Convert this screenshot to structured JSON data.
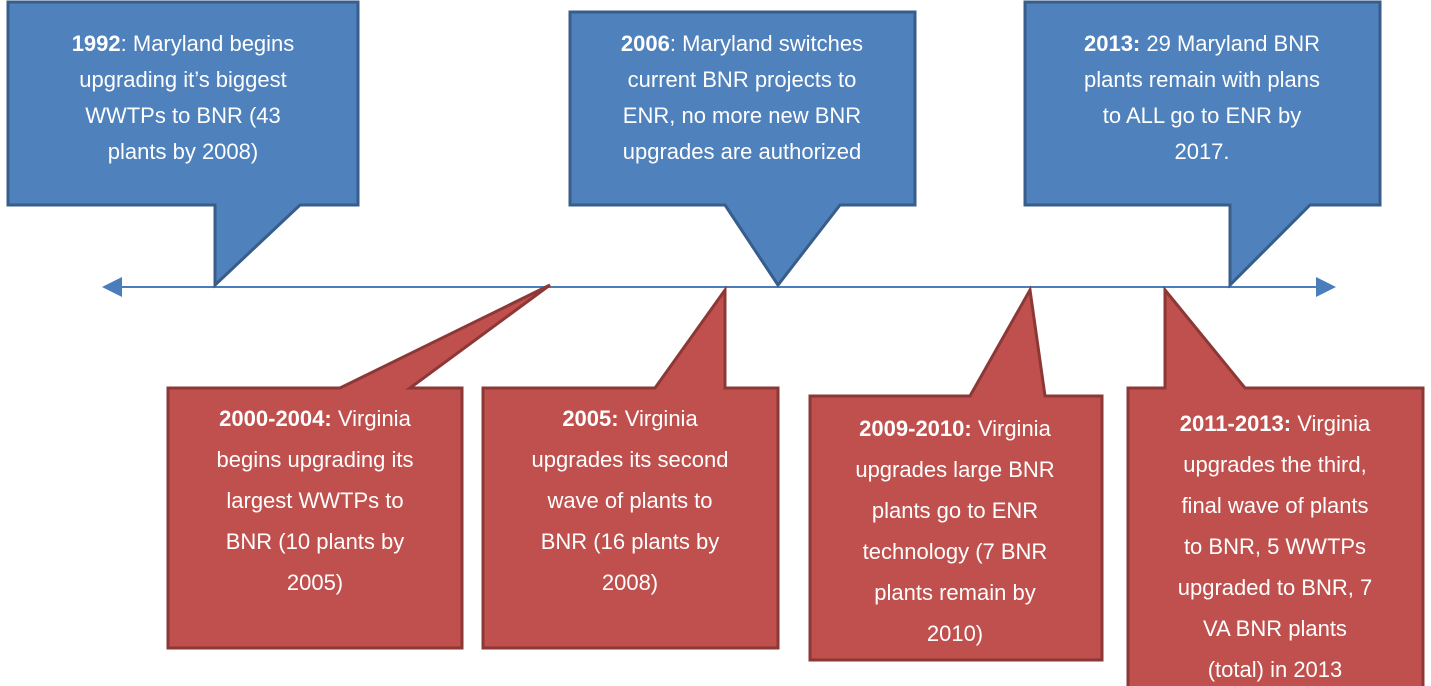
{
  "events": [
    {
      "date": "1992",
      "lines": [
        ": Maryland begins",
        "upgrading it’s biggest",
        "WWTPs to BNR (43",
        "plants by 2008)"
      ]
    },
    {
      "date": "2006",
      "lines": [
        ": Maryland switches",
        "current BNR projects to",
        "ENR, no more new BNR",
        "upgrades are authorized"
      ]
    },
    {
      "date": "2013:",
      "lines": [
        " 29 Maryland BNR",
        "plants remain with plans",
        "to ALL go to ENR by",
        "2017."
      ]
    },
    {
      "date": "2000-2004:",
      "lines": [
        " Virginia",
        "begins upgrading its",
        "largest WWTPs to",
        "BNR (10 plants by",
        "2005)"
      ]
    },
    {
      "date": "2005:",
      "lines": [
        " Virginia",
        "upgrades its second",
        "wave of plants to",
        "BNR (16 plants by",
        "2008)"
      ]
    },
    {
      "date": "2009-2010:",
      "lines": [
        " Virginia",
        "upgrades large BNR",
        "plants go to ENR",
        "technology (7 BNR",
        "plants remain by",
        "2010)"
      ]
    },
    {
      "date": "2011-2013:",
      "lines": [
        " Virginia",
        "upgrades the third,",
        "final wave of plants",
        "to BNR, 5 WWTPs",
        "upgraded to BNR, 7",
        "VA BNR plants",
        "(total) in 2013"
      ]
    }
  ]
}
